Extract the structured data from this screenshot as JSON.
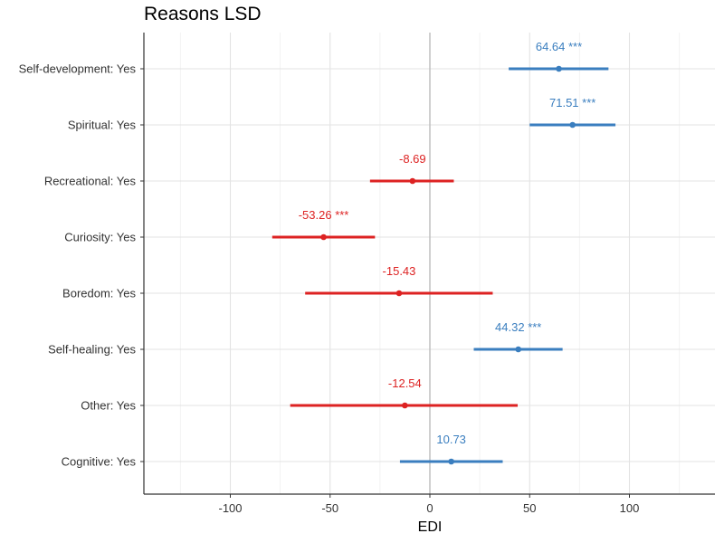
{
  "chart_data": {
    "type": "forest",
    "title": "Reasons LSD",
    "xlabel": "EDI",
    "ylabel": "",
    "xlim": [
      -143,
      143
    ],
    "x_ticks": [
      -100,
      -50,
      0,
      50,
      100
    ],
    "x_tick_labels": [
      "-100",
      "-50",
      "0",
      "50",
      "100"
    ],
    "grid": true,
    "reference_line": 0,
    "colors": {
      "positive": "#3a7ebf",
      "negative": "#dd2222"
    },
    "rows": [
      {
        "label": "Self-development: Yes",
        "estimate": 64.64,
        "lower": 39.5,
        "upper": 89.5,
        "annotation": "64.64 ***",
        "direction": "positive"
      },
      {
        "label": "Spiritual: Yes",
        "estimate": 71.51,
        "lower": 50.0,
        "upper": 93.0,
        "annotation": "71.51 ***",
        "direction": "positive"
      },
      {
        "label": "Recreational: Yes",
        "estimate": -8.69,
        "lower": -30.0,
        "upper": 12.0,
        "annotation": "-8.69",
        "direction": "negative"
      },
      {
        "label": "Curiosity: Yes",
        "estimate": -53.26,
        "lower": -79.0,
        "upper": -27.5,
        "annotation": "-53.26 ***",
        "direction": "negative"
      },
      {
        "label": "Boredom: Yes",
        "estimate": -15.43,
        "lower": -62.5,
        "upper": 31.5,
        "annotation": "-15.43",
        "direction": "negative"
      },
      {
        "label": "Self-healing: Yes",
        "estimate": 44.32,
        "lower": 22.0,
        "upper": 66.5,
        "annotation": "44.32 ***",
        "direction": "positive"
      },
      {
        "label": "Other: Yes",
        "estimate": -12.54,
        "lower": -70.0,
        "upper": 44.0,
        "annotation": "-12.54",
        "direction": "negative"
      },
      {
        "label": "Cognitive: Yes",
        "estimate": 10.73,
        "lower": -15.0,
        "upper": 36.5,
        "annotation": "10.73",
        "direction": "positive"
      }
    ]
  }
}
